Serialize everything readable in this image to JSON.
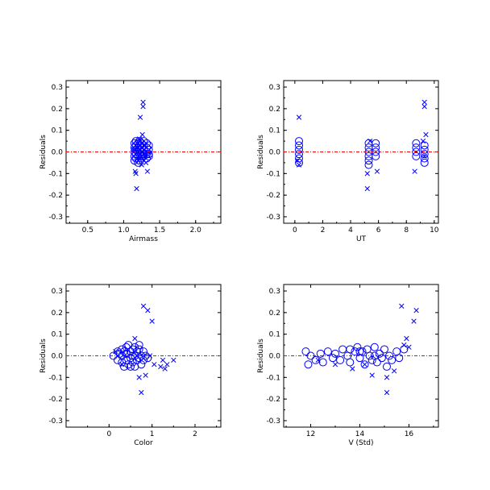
{
  "chart_data": [
    {
      "type": "scatter",
      "xlabel": "Airmass",
      "ylabel": "Residuals",
      "xlim": [
        0.2,
        2.35
      ],
      "ylim": [
        -0.33,
        0.33
      ],
      "xticks": [
        0.5,
        1.0,
        1.5,
        2.0
      ],
      "xtick_labels": [
        "0.5",
        "1.0",
        "1.5",
        "2.0"
      ],
      "yticks": [
        -0.3,
        -0.2,
        -0.1,
        0.0,
        0.1,
        0.2,
        0.3
      ],
      "ytick_labels": [
        "-0.3",
        "-0.2",
        "-0.1",
        "0.0",
        "0.1",
        "0.2",
        "0.3"
      ],
      "zero_line": 0.0,
      "grid": false,
      "colors": {
        "points": "#0000ff",
        "zero_line": "#ff0000"
      },
      "series": [
        {
          "marker": "circle",
          "points": [
            [
              1.15,
              0.04
            ],
            [
              1.15,
              0.02
            ],
            [
              1.15,
              0.0
            ],
            [
              1.15,
              -0.02
            ],
            [
              1.15,
              -0.04
            ],
            [
              1.17,
              0.03
            ],
            [
              1.17,
              0.01
            ],
            [
              1.17,
              -0.01
            ],
            [
              1.17,
              -0.03
            ],
            [
              1.17,
              0.05
            ],
            [
              1.2,
              0.04
            ],
            [
              1.2,
              0.02
            ],
            [
              1.2,
              0.0
            ],
            [
              1.2,
              -0.02
            ],
            [
              1.2,
              -0.05
            ],
            [
              1.22,
              0.03
            ],
            [
              1.22,
              0.01
            ],
            [
              1.22,
              -0.01
            ],
            [
              1.22,
              -0.04
            ],
            [
              1.22,
              0.05
            ],
            [
              1.25,
              0.02
            ],
            [
              1.25,
              0.0
            ],
            [
              1.25,
              -0.02
            ],
            [
              1.25,
              0.04
            ],
            [
              1.25,
              -0.03
            ],
            [
              1.28,
              0.03
            ],
            [
              1.28,
              0.01
            ],
            [
              1.28,
              -0.01
            ],
            [
              1.28,
              0.05
            ],
            [
              1.28,
              -0.02
            ],
            [
              1.32,
              0.02
            ],
            [
              1.32,
              0.0
            ],
            [
              1.32,
              -0.01
            ],
            [
              1.32,
              0.04
            ],
            [
              1.32,
              -0.03
            ],
            [
              1.35,
              0.03
            ],
            [
              1.35,
              0.01
            ],
            [
              1.35,
              -0.01
            ],
            [
              1.35,
              -0.02
            ]
          ]
        },
        {
          "marker": "x",
          "points": [
            [
              1.27,
              0.23
            ],
            [
              1.27,
              0.21
            ],
            [
              1.23,
              0.16
            ],
            [
              1.26,
              0.08
            ],
            [
              1.22,
              0.06
            ],
            [
              1.17,
              -0.1
            ],
            [
              1.16,
              -0.09
            ],
            [
              1.18,
              -0.17
            ],
            [
              1.33,
              -0.09
            ],
            [
              1.2,
              -0.04
            ],
            [
              1.3,
              0.03
            ],
            [
              1.25,
              -0.06
            ],
            [
              1.14,
              0.01
            ],
            [
              1.19,
              0.02
            ],
            [
              1.31,
              -0.05
            ]
          ]
        }
      ]
    },
    {
      "type": "scatter",
      "xlabel": "UT",
      "ylabel": "Residuals",
      "xlim": [
        -0.8,
        10.3
      ],
      "ylim": [
        -0.33,
        0.33
      ],
      "xticks": [
        0,
        2,
        4,
        6,
        8,
        10
      ],
      "xtick_labels": [
        "0",
        "2",
        "4",
        "6",
        "8",
        "10"
      ],
      "yticks": [
        -0.3,
        -0.2,
        -0.1,
        0.0,
        0.1,
        0.2,
        0.3
      ],
      "ytick_labels": [
        "-0.3",
        "-0.2",
        "-0.1",
        "0.0",
        "0.1",
        "0.2",
        "0.3"
      ],
      "zero_line": 0.0,
      "grid": false,
      "colors": {
        "points": "#0000ff",
        "zero_line": "#ff0000"
      },
      "series": [
        {
          "marker": "circle",
          "points": [
            [
              0.3,
              0.05
            ],
            [
              0.3,
              0.03
            ],
            [
              0.3,
              0.01
            ],
            [
              0.3,
              -0.01
            ],
            [
              0.3,
              -0.03
            ],
            [
              0.3,
              -0.05
            ],
            [
              5.3,
              0.04
            ],
            [
              5.3,
              0.02
            ],
            [
              5.3,
              0.0
            ],
            [
              5.3,
              -0.02
            ],
            [
              5.3,
              -0.04
            ],
            [
              5.3,
              -0.06
            ],
            [
              5.8,
              0.04
            ],
            [
              5.8,
              0.02
            ],
            [
              5.8,
              0.0
            ],
            [
              5.8,
              -0.02
            ],
            [
              8.7,
              0.04
            ],
            [
              8.7,
              0.02
            ],
            [
              8.7,
              0.0
            ],
            [
              8.7,
              -0.02
            ],
            [
              9.3,
              0.03
            ],
            [
              9.3,
              0.01
            ],
            [
              9.3,
              -0.01
            ],
            [
              9.3,
              -0.03
            ],
            [
              9.3,
              -0.05
            ]
          ]
        },
        {
          "marker": "x",
          "points": [
            [
              0.3,
              0.16
            ],
            [
              0.3,
              -0.06
            ],
            [
              0.2,
              -0.04
            ],
            [
              5.2,
              -0.1
            ],
            [
              5.2,
              -0.17
            ],
            [
              5.4,
              0.05
            ],
            [
              5.9,
              -0.09
            ],
            [
              8.6,
              -0.09
            ],
            [
              9.3,
              0.23
            ],
            [
              9.3,
              0.21
            ],
            [
              9.4,
              0.08
            ],
            [
              9.2,
              0.05
            ],
            [
              9.3,
              -0.02
            ]
          ]
        }
      ]
    },
    {
      "type": "scatter",
      "xlabel": "Color",
      "ylabel": "Residuals",
      "xlim": [
        -1.0,
        2.6
      ],
      "ylim": [
        -0.33,
        0.33
      ],
      "xticks": [
        0,
        1,
        2
      ],
      "xtick_labels": [
        "0",
        "1",
        "2"
      ],
      "yticks": [
        -0.3,
        -0.2,
        -0.1,
        0.0,
        0.1,
        0.2,
        0.3
      ],
      "ytick_labels": [
        "-0.3",
        "-0.2",
        "-0.1",
        "0.0",
        "0.1",
        "0.2",
        "0.3"
      ],
      "zero_line": 0.0,
      "grid": false,
      "colors": {
        "points": "#0000ff",
        "zero_line": "#ff0000"
      },
      "series": [
        {
          "marker": "circle",
          "points": [
            [
              0.1,
              0.0
            ],
            [
              0.2,
              0.02
            ],
            [
              0.2,
              -0.02
            ],
            [
              0.3,
              0.03
            ],
            [
              0.3,
              0.0
            ],
            [
              0.3,
              -0.03
            ],
            [
              0.35,
              -0.05
            ],
            [
              0.4,
              0.04
            ],
            [
              0.4,
              0.01
            ],
            [
              0.4,
              -0.02
            ],
            [
              0.45,
              0.05
            ],
            [
              0.45,
              -0.04
            ],
            [
              0.5,
              0.02
            ],
            [
              0.5,
              -0.01
            ],
            [
              0.55,
              0.03
            ],
            [
              0.55,
              -0.03
            ],
            [
              0.6,
              0.04
            ],
            [
              0.6,
              0.0
            ],
            [
              0.6,
              -0.05
            ],
            [
              0.65,
              0.02
            ],
            [
              0.65,
              -0.02
            ],
            [
              0.7,
              0.03
            ],
            [
              0.7,
              -0.01
            ],
            [
              0.75,
              0.0
            ],
            [
              0.75,
              -0.04
            ],
            [
              0.8,
              0.02
            ],
            [
              0.8,
              -0.02
            ],
            [
              0.85,
              0.0
            ],
            [
              0.9,
              -0.01
            ],
            [
              0.25,
              0.01
            ],
            [
              0.35,
              0.02
            ],
            [
              0.55,
              0.0
            ],
            [
              0.7,
              0.05
            ],
            [
              0.5,
              -0.05
            ]
          ]
        },
        {
          "marker": "x",
          "points": [
            [
              0.8,
              0.23
            ],
            [
              0.9,
              0.21
            ],
            [
              1.0,
              0.16
            ],
            [
              0.6,
              0.08
            ],
            [
              0.7,
              -0.1
            ],
            [
              0.75,
              -0.17
            ],
            [
              0.85,
              -0.09
            ],
            [
              1.05,
              -0.04
            ],
            [
              1.2,
              -0.05
            ],
            [
              1.3,
              -0.06
            ],
            [
              1.35,
              -0.04
            ],
            [
              1.5,
              -0.02
            ],
            [
              1.25,
              -0.02
            ],
            [
              0.15,
              0.02
            ],
            [
              0.3,
              -0.04
            ],
            [
              0.95,
              0.0
            ]
          ]
        }
      ]
    },
    {
      "type": "scatter",
      "xlabel": "V (Std)",
      "ylabel": "Residuals",
      "xlim": [
        10.9,
        17.2
      ],
      "ylim": [
        -0.33,
        0.33
      ],
      "xticks": [
        12,
        14,
        16
      ],
      "xtick_labels": [
        "12",
        "14",
        "16"
      ],
      "yticks": [
        -0.3,
        -0.2,
        -0.1,
        0.0,
        0.1,
        0.2,
        0.3
      ],
      "ytick_labels": [
        "-0.3",
        "-0.2",
        "-0.1",
        "0.0",
        "0.1",
        "0.2",
        "0.3"
      ],
      "zero_line": 0.0,
      "grid": false,
      "colors": {
        "points": "#0000ff",
        "zero_line": "#ff0000"
      },
      "series": [
        {
          "marker": "circle",
          "points": [
            [
              11.8,
              0.02
            ],
            [
              11.9,
              -0.04
            ],
            [
              12.0,
              0.0
            ],
            [
              12.2,
              -0.02
            ],
            [
              12.4,
              0.01
            ],
            [
              12.5,
              -0.03
            ],
            [
              12.7,
              0.02
            ],
            [
              12.9,
              -0.01
            ],
            [
              13.0,
              0.01
            ],
            [
              13.2,
              -0.02
            ],
            [
              13.3,
              0.03
            ],
            [
              13.5,
              0.0
            ],
            [
              13.6,
              -0.03
            ],
            [
              13.8,
              0.02
            ],
            [
              13.9,
              0.04
            ],
            [
              14.0,
              -0.01
            ],
            [
              14.1,
              0.02
            ],
            [
              14.2,
              -0.04
            ],
            [
              14.3,
              0.03
            ],
            [
              14.4,
              0.0
            ],
            [
              14.5,
              -0.02
            ],
            [
              14.6,
              0.04
            ],
            [
              14.7,
              -0.03
            ],
            [
              14.8,
              0.01
            ],
            [
              14.9,
              -0.01
            ],
            [
              15.0,
              0.03
            ],
            [
              15.1,
              -0.05
            ],
            [
              15.2,
              0.0
            ],
            [
              15.3,
              -0.02
            ],
            [
              15.5,
              0.02
            ],
            [
              15.6,
              -0.01
            ],
            [
              15.8,
              0.03
            ],
            [
              14.6,
              0.0
            ],
            [
              14.0,
              0.02
            ],
            [
              13.6,
              0.03
            ]
          ]
        },
        {
          "marker": "x",
          "points": [
            [
              15.7,
              0.23
            ],
            [
              16.3,
              0.21
            ],
            [
              16.2,
              0.16
            ],
            [
              15.9,
              0.08
            ],
            [
              15.8,
              0.05
            ],
            [
              14.5,
              -0.09
            ],
            [
              15.1,
              -0.1
            ],
            [
              15.1,
              -0.17
            ],
            [
              13.7,
              -0.06
            ],
            [
              12.3,
              -0.02
            ],
            [
              14.2,
              -0.04
            ],
            [
              16.0,
              0.04
            ],
            [
              13.0,
              -0.04
            ],
            [
              15.4,
              -0.07
            ]
          ]
        }
      ]
    }
  ]
}
